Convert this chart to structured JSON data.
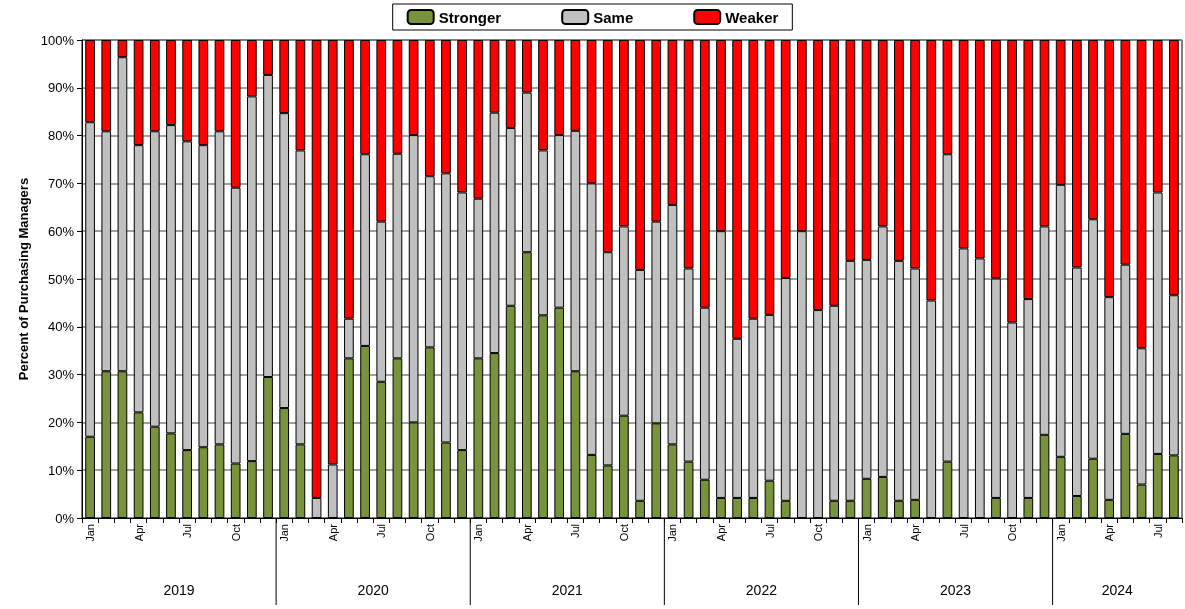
{
  "chart_data": {
    "type": "bar",
    "stacked": true,
    "ylabel": "Percent of Purchasing Managers",
    "categories": [
      "Jan",
      null,
      null,
      "Apr",
      null,
      null,
      "Jul",
      null,
      null,
      "Oct",
      null,
      null,
      "Jan",
      null,
      null,
      "Apr",
      null,
      null,
      "Jul",
      null,
      null,
      "Oct",
      null,
      null,
      "Jan",
      null,
      null,
      "Apr",
      null,
      null,
      "Jul",
      null,
      null,
      "Oct",
      null,
      null,
      "Jan",
      null,
      null,
      "Apr",
      null,
      null,
      "Jul",
      null,
      null,
      "Oct",
      null,
      null,
      "Jan",
      null,
      null,
      "Apr",
      null,
      null,
      "Jul",
      null,
      null,
      "Oct",
      null,
      null,
      "Jan",
      null,
      null,
      "Apr",
      null,
      null,
      "Jul",
      null
    ],
    "series": [
      {
        "name": "Stronger",
        "color": "#77933c",
        "values": [
          17,
          30.7,
          30.7,
          22.1,
          19.1,
          17.7,
          14.2,
          14.8,
          15.4,
          11.4,
          11.9,
          29.5,
          23,
          15.4,
          0,
          0,
          33.4,
          36,
          28.5,
          33.4,
          20,
          35.7,
          15.8,
          14.2,
          33.4,
          34.5,
          44.4,
          55.6,
          42.4,
          44,
          30.7,
          13.2,
          11,
          21.4,
          3.6,
          19.8,
          15.4,
          11.8,
          8,
          4.2,
          4.2,
          4.2,
          7.8,
          3.6,
          0,
          0,
          3.6,
          3.6,
          8.2,
          8.6,
          3.6,
          3.8,
          0,
          11.8,
          0,
          0,
          4.2,
          0,
          4.2,
          17.4,
          12.8,
          4.6,
          12.4,
          3.8,
          17.6,
          7,
          13.4,
          13.1
        ]
      },
      {
        "name": "Same",
        "color": "#c0c0c0",
        "values": [
          65.8,
          50.2,
          65.7,
          55.9,
          61.8,
          64.5,
          64.6,
          63.2,
          65.5,
          57.7,
          76.3,
          63.2,
          61.7,
          61.5,
          4.2,
          11.2,
          8.3,
          40.1,
          33.5,
          42.8,
          60.1,
          35.8,
          56.3,
          53.9,
          33.4,
          50.3,
          37.2,
          33.4,
          34.5,
          36.1,
          50.3,
          56.8,
          44.6,
          39.6,
          48.3,
          42.2,
          50.1,
          40.4,
          36,
          55.8,
          33.3,
          37.5,
          34.7,
          46.6,
          60,
          43.5,
          40.8,
          50.2,
          45.8,
          52.4,
          50.2,
          48.4,
          45.5,
          64.3,
          56.4,
          54.3,
          45.9,
          40.9,
          41.6,
          43.6,
          56.9,
          47.8,
          50.1,
          42.4,
          35.4,
          28.5,
          54.7,
          33.5
        ]
      },
      {
        "name": "Weaker",
        "color": "#ff0000",
        "values": [
          17.2,
          19.1,
          3.6,
          22,
          19.1,
          17.8,
          21.2,
          22,
          19.1,
          30.9,
          11.8,
          7.3,
          15.3,
          23.1,
          95.8,
          88.8,
          58.3,
          23.9,
          38,
          23.8,
          19.9,
          28.5,
          27.9,
          31.9,
          33.2,
          15.2,
          18.4,
          11,
          23.1,
          19.9,
          19,
          30,
          44.4,
          39,
          48.1,
          38,
          34.5,
          47.8,
          56,
          40,
          62.5,
          58.3,
          57.5,
          49.8,
          40,
          56.5,
          55.6,
          46.2,
          46,
          39,
          46.2,
          47.8,
          54.5,
          23.9,
          43.6,
          45.7,
          49.9,
          59.1,
          54.2,
          39,
          30.3,
          47.6,
          37.5,
          53.8,
          47,
          64.5,
          31.9,
          53.4
        ]
      }
    ],
    "ylim": [
      0,
      100
    ],
    "yticks": [
      {
        "value": 0,
        "label": "0%"
      },
      {
        "value": 10,
        "label": "10%"
      },
      {
        "value": 20,
        "label": "20%"
      },
      {
        "value": 30,
        "label": "30%"
      },
      {
        "value": 40,
        "label": "40%"
      },
      {
        "value": 50,
        "label": "50%"
      },
      {
        "value": 60,
        "label": "60%"
      },
      {
        "value": 70,
        "label": "70%"
      },
      {
        "value": 80,
        "label": "80%"
      },
      {
        "value": 90,
        "label": "90%"
      },
      {
        "value": 100,
        "label": "100%"
      }
    ],
    "grid": "y",
    "legend": "top",
    "annotations": [
      "2019",
      "2020",
      "2021",
      "2022",
      "2023",
      "2024"
    ]
  }
}
